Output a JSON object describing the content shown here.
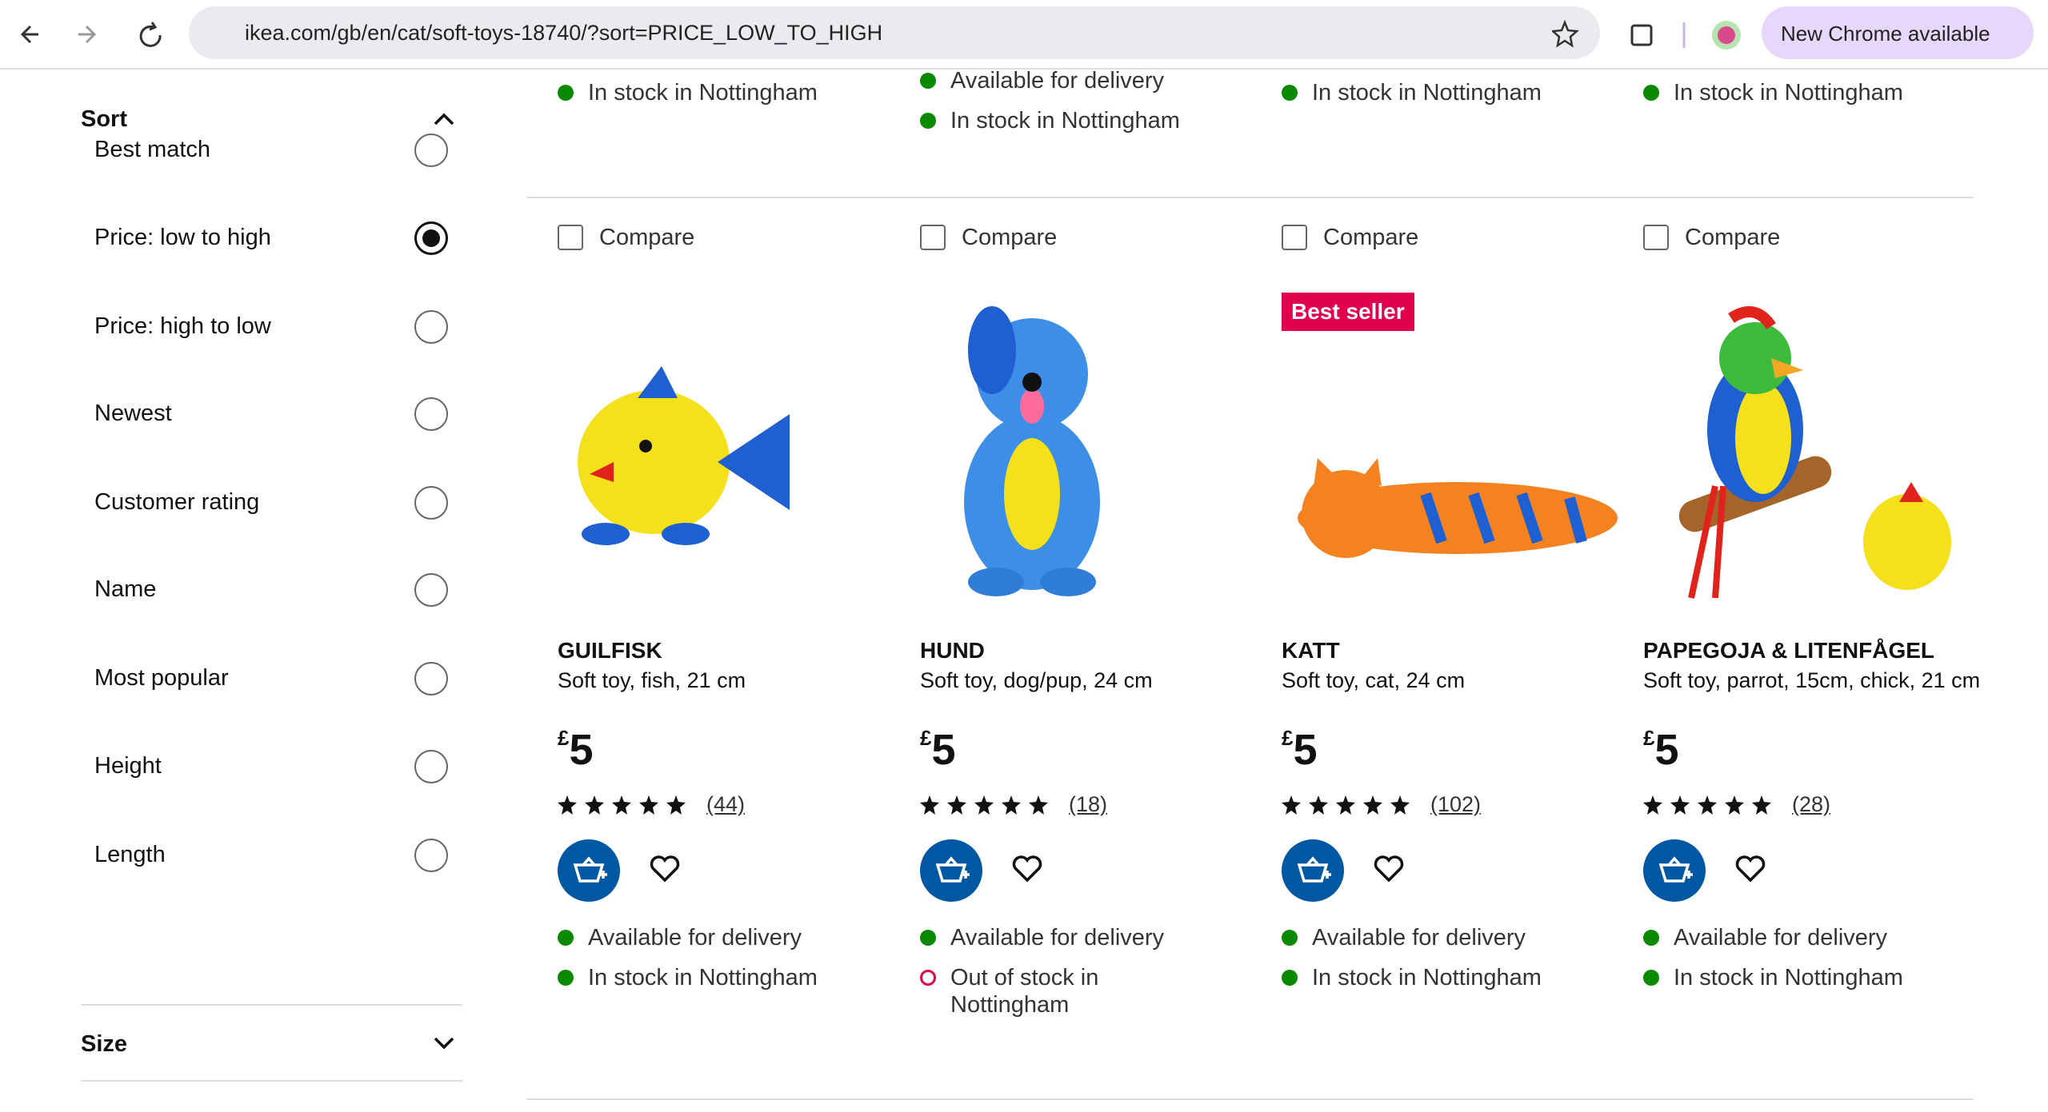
{
  "browser": {
    "url": "ikea.com/gb/en/cat/soft-toys-18740/?sort=PRICE_LOW_TO_HIGH",
    "update_button": "New Chrome available"
  },
  "sidebar": {
    "sort_title": "Sort",
    "options": [
      "Best match",
      "Price: low to high",
      "Price: high to low",
      "Newest",
      "Customer rating",
      "Name",
      "Most popular",
      "Height",
      "Length"
    ],
    "selected": 1,
    "size_title": "Size"
  },
  "previous_row": [
    [
      {
        "text": "In stock in Nottingham",
        "in_stock": true
      }
    ],
    [
      {
        "text": "Available for delivery",
        "in_stock": true
      },
      {
        "text": "In stock in Nottingham",
        "in_stock": true
      }
    ],
    [
      {
        "text": "In stock in Nottingham",
        "in_stock": true
      }
    ],
    [
      {
        "text": "In stock in Nottingham",
        "in_stock": true
      }
    ]
  ],
  "products": [
    {
      "compare": "Compare",
      "name": "GUILFISK",
      "description": "Soft toy, fish, 21 cm",
      "currency": "£",
      "price": "5",
      "reviews": "(44)",
      "image": "fish",
      "statuses": [
        {
          "text": "Available for delivery",
          "in_stock": true
        },
        {
          "text": "In stock in Nottingham",
          "in_stock": true
        }
      ]
    },
    {
      "compare": "Compare",
      "name": "HUND",
      "description": "Soft toy, dog/pup, 24 cm",
      "currency": "£",
      "price": "5",
      "reviews": "(18)",
      "image": "dog",
      "statuses": [
        {
          "text": "Available for delivery",
          "in_stock": true
        },
        {
          "text": "Out of stock in Nottingham",
          "in_stock": false
        }
      ]
    },
    {
      "compare": "Compare",
      "badge": "Best seller",
      "name": "KATT",
      "description": "Soft toy, cat, 24 cm",
      "currency": "£",
      "price": "5",
      "reviews": "(102)",
      "image": "cat",
      "statuses": [
        {
          "text": "Available for delivery",
          "in_stock": true
        },
        {
          "text": "In stock in Nottingham",
          "in_stock": true
        }
      ]
    },
    {
      "compare": "Compare",
      "name": "PAPEGOJA & LITENFÅGEL",
      "description": "Soft toy, parrot, 15cm, chick, 21 cm",
      "currency": "£",
      "price": "5",
      "reviews": "(28)",
      "image": "parrot",
      "statuses": [
        {
          "text": "Available for delivery",
          "in_stock": true
        },
        {
          "text": "In stock in Nottingham",
          "in_stock": true
        }
      ]
    }
  ]
}
